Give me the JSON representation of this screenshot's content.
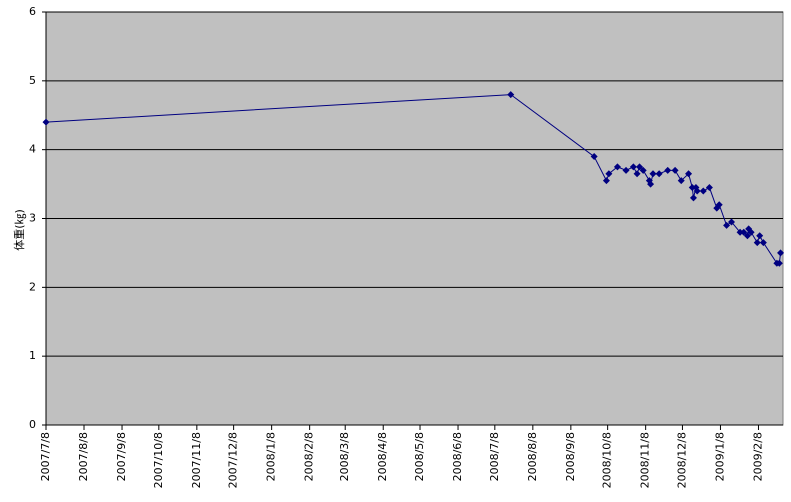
{
  "chart_data": {
    "type": "line",
    "y_label": "体重(㎏)",
    "x": [
      "2007/7/8",
      "2008/7/21",
      "2008/9/27",
      "2008/10/7",
      "2008/10/9",
      "2008/10/16",
      "2008/10/23",
      "2008/10/29",
      "2008/11/1",
      "2008/11/3",
      "2008/11/6",
      "2008/11/11",
      "2008/11/12",
      "2008/11/14",
      "2008/11/19",
      "2008/11/26",
      "2008/12/2",
      "2008/12/7",
      "2008/12/13",
      "2008/12/16",
      "2008/12/17",
      "2008/12/19",
      "2008/12/20",
      "2008/12/25",
      "2008/12/30",
      "2009/1/5",
      "2009/1/7",
      "2009/1/13",
      "2009/1/17",
      "2009/1/24",
      "2009/1/27",
      "2009/1/30",
      "2009/1/31",
      "2009/2/2",
      "2009/2/7",
      "2009/2/9",
      "2009/2/12",
      "2009/2/23",
      "2009/2/25",
      "2009/2/26"
    ],
    "series": [
      {
        "name": "体重",
        "color": "#000080",
        "values": [
          4.4,
          4.8,
          3.9,
          3.55,
          3.65,
          3.75,
          3.7,
          3.75,
          3.65,
          3.75,
          3.7,
          3.55,
          3.5,
          3.65,
          3.65,
          3.7,
          3.7,
          3.55,
          3.65,
          3.45,
          3.3,
          3.45,
          3.4,
          3.4,
          3.45,
          3.15,
          3.2,
          2.9,
          2.95,
          2.8,
          2.8,
          2.75,
          2.85,
          2.8,
          2.65,
          2.75,
          2.65,
          2.35,
          2.35,
          2.5
        ]
      }
    ],
    "xlim": [
      "2007/7/8",
      "2009/2/28"
    ],
    "xticks": [
      "2007/7/8",
      "2007/8/8",
      "2007/9/8",
      "2007/10/8",
      "2007/11/8",
      "2007/12/8",
      "2008/1/8",
      "2008/2/8",
      "2008/3/8",
      "2008/4/8",
      "2008/5/8",
      "2008/6/8",
      "2008/7/8",
      "2008/8/8",
      "2008/9/8",
      "2008/10/8",
      "2008/11/8",
      "2008/12/8",
      "2009/1/8",
      "2009/2/8"
    ],
    "ylim": [
      0,
      6
    ],
    "yticks": [
      0,
      1,
      2,
      3,
      4,
      5,
      6
    ],
    "grid": true,
    "plot_background": "#c0c0c0"
  }
}
